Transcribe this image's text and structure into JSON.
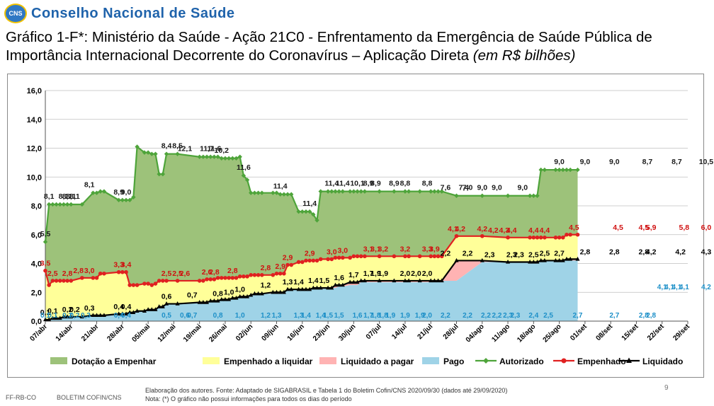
{
  "header": {
    "logo_badge": "CNS",
    "org_name": "Conselho Nacional de Saúde",
    "title_main": "Gráfico 1-F*: Ministério da Saúde - Ação 21C0 - Enfrentamento da Emergência de Saúde Pública de Importância Internacional Decorrente do Coronavírus – Aplicação Direta ",
    "title_unit": "(em R$ bilhões)"
  },
  "footer": {
    "code": "FF-RB-CO",
    "bulletin": "BOLETIM COFIN/CNS",
    "source": "Elaboração dos autores. Fonte: Adaptado de SIGABRASIL e Tabela 1 do Boletim Cofin/CNS 2020/09/30 (dados até 29/09/2020)",
    "note": "Nota: (*) O gráfico não possui informações para todos os dias do período",
    "page": "9"
  },
  "colors": {
    "dotacao_fill": "#9dc27a",
    "empenhado_fill": "#ffff99",
    "liq_pagar_fill": "#ffb3b3",
    "pago_fill": "#9fd3e7",
    "autorizado_line": "#4ea43a",
    "empenhado_line": "#e02020",
    "liquidado_line": "#000000",
    "pago_label": "#1e90c8"
  },
  "chart_data": {
    "type": "area",
    "ylim": [
      0,
      16
    ],
    "yticks": [
      "0,0",
      "2,0",
      "4,0",
      "6,0",
      "8,0",
      "10,0",
      "12,0",
      "14,0",
      "16,0"
    ],
    "x_ticks": [
      "07/abr",
      "14/abr",
      "21/abr",
      "28/abr",
      "05/mai",
      "12/mai",
      "19/mai",
      "26/mai",
      "02/jun",
      "09/jun",
      "16/jun",
      "23/jun",
      "30/jun",
      "07/jul",
      "14/jul",
      "21/jul",
      "28/jul",
      "04/ago",
      "11/ago",
      "18/ago",
      "25/ago",
      "01/set",
      "08/set",
      "15/set",
      "22/set",
      "29/set"
    ],
    "x_days": [
      0,
      1,
      2,
      3,
      4,
      5,
      6,
      7,
      10,
      13,
      14,
      15,
      16,
      20,
      21,
      22,
      23,
      24,
      25,
      27,
      28,
      29,
      30,
      31,
      32,
      33,
      36,
      42,
      43,
      44,
      45,
      46,
      47,
      48,
      49,
      50,
      51,
      52,
      53,
      54,
      55,
      56,
      57,
      58,
      59,
      62,
      63,
      64,
      65,
      66,
      67,
      69,
      70,
      71,
      72,
      73,
      74,
      75,
      77,
      78,
      79,
      80,
      81,
      83,
      84,
      85,
      86,
      87,
      91,
      95,
      98,
      99,
      102,
      105,
      106,
      107,
      108,
      112,
      119,
      126,
      132,
      133,
      134,
      135,
      136,
      139,
      140,
      141,
      142,
      143,
      145
    ],
    "series": [
      {
        "name": "Autorizado",
        "values": [
          5.5,
          8.1,
          8.1,
          8.1,
          8.1,
          8.1,
          8.1,
          8.1,
          8.1,
          8.9,
          8.9,
          9.0,
          9.0,
          8.4,
          8.4,
          8.4,
          8.4,
          8.6,
          12.1,
          11.7,
          11.7,
          11.6,
          11.6,
          10.2,
          10.2,
          11.6,
          11.6,
          11.4,
          11.4,
          11.4,
          11.4,
          11.4,
          11.4,
          11.3,
          11.3,
          11.3,
          11.3,
          11.3,
          11.4,
          10.1,
          9.8,
          8.9,
          8.9,
          8.9,
          8.9,
          8.9,
          8.9,
          8.8,
          8.8,
          8.8,
          8.8,
          7.6,
          7.6,
          7.6,
          7.6,
          7.4,
          7.0,
          9.0,
          9.0,
          9.0,
          9.0,
          9.0,
          9.0,
          9.0,
          9.0,
          9.0,
          9.0,
          9.0,
          9.0,
          9.0,
          9.0,
          9.0,
          9.0,
          9.0,
          9.0,
          9.0,
          9.0,
          8.7,
          8.7,
          8.7,
          8.7,
          8.7,
          8.7,
          10.5,
          10.5,
          10.5,
          10.5,
          10.5,
          10.5,
          10.5,
          10.5
        ]
      },
      {
        "name": "Empenhado",
        "values": [
          3.5,
          2.5,
          2.8,
          2.8,
          2.8,
          2.8,
          2.8,
          2.8,
          3.0,
          3.0,
          3.0,
          3.3,
          3.3,
          3.4,
          3.4,
          3.4,
          2.5,
          2.5,
          2.5,
          2.6,
          2.6,
          2.5,
          2.6,
          2.8,
          2.8,
          2.8,
          2.8,
          2.8,
          2.8,
          2.9,
          2.9,
          2.9,
          3.0,
          3.0,
          3.0,
          3.0,
          3.0,
          3.0,
          3.1,
          3.1,
          3.1,
          3.2,
          3.2,
          3.2,
          3.2,
          3.2,
          3.3,
          3.3,
          3.3,
          3.9,
          3.9,
          4.1,
          4.1,
          4.2,
          4.2,
          4.2,
          4.2,
          4.3,
          4.3,
          4.3,
          4.4,
          4.4,
          4.4,
          4.4,
          4.5,
          4.5,
          4.5,
          4.5,
          4.5,
          4.5,
          4.5,
          4.5,
          4.5,
          4.5,
          4.5,
          4.5,
          4.5,
          5.9,
          5.9,
          5.8,
          5.8,
          5.8,
          5.8,
          5.8,
          5.8,
          5.8,
          5.8,
          5.8,
          6.0,
          6.0,
          6.0
        ]
      },
      {
        "name": "Liquidado",
        "values": [
          0.1,
          0.1,
          0.2,
          0.2,
          0.2,
          0.3,
          0.3,
          0.3,
          0.3,
          0.4,
          0.4,
          0.4,
          0.4,
          0.5,
          0.5,
          0.5,
          0.6,
          0.6,
          0.7,
          0.7,
          0.8,
          0.8,
          0.8,
          1.0,
          1.0,
          1.2,
          1.2,
          1.3,
          1.3,
          1.3,
          1.4,
          1.4,
          1.4,
          1.5,
          1.5,
          1.5,
          1.6,
          1.6,
          1.7,
          1.7,
          1.7,
          1.8,
          1.9,
          1.9,
          1.9,
          2.0,
          2.0,
          2.0,
          2.0,
          2.2,
          2.2,
          2.2,
          2.2,
          2.2,
          2.2,
          2.3,
          2.3,
          2.3,
          2.3,
          2.3,
          2.5,
          2.5,
          2.5,
          2.7,
          2.7,
          2.7,
          2.8,
          2.8,
          2.8,
          2.8,
          2.8,
          2.8,
          2.8,
          2.8,
          2.8,
          2.8,
          2.8,
          4.2,
          4.2,
          4.1,
          4.1,
          4.1,
          4.1,
          4.2,
          4.2,
          4.2,
          4.2,
          4.2,
          4.3,
          4.3,
          4.3
        ]
      },
      {
        "name": "Pago",
        "values": [
          0.1,
          0.1,
          0.2,
          0.2,
          0.2,
          0.3,
          0.3,
          0.3,
          0.3,
          0.4,
          0.4,
          0.4,
          0.4,
          0.5,
          0.5,
          0.5,
          0.6,
          0.6,
          0.7,
          0.7,
          0.8,
          0.8,
          0.8,
          1.0,
          1.0,
          1.2,
          1.2,
          1.3,
          1.3,
          1.3,
          1.4,
          1.4,
          1.4,
          1.5,
          1.5,
          1.5,
          1.6,
          1.6,
          1.7,
          1.7,
          1.7,
          1.8,
          1.9,
          1.9,
          1.9,
          1.9,
          2.0,
          2.0,
          2.0,
          2.2,
          2.2,
          2.2,
          2.2,
          2.2,
          2.2,
          2.2,
          2.2,
          2.2,
          2.3,
          2.3,
          2.3,
          2.4,
          2.4,
          2.5,
          2.5,
          2.5,
          2.7,
          2.7,
          2.7,
          2.7,
          2.7,
          2.7,
          2.7,
          2.7,
          2.7,
          2.7,
          2.8,
          2.8,
          4.1,
          4.1,
          4.1,
          4.1,
          4.1,
          4.1,
          4.2,
          4.2,
          4.2,
          4.2,
          4.2,
          4.2,
          4.2
        ]
      }
    ],
    "legend": [
      "Dotação a Empenhar",
      "Empenhado a liquidar",
      "Liquidado a pagar",
      "Pago",
      "Autorizado",
      "Empenhado",
      "Liquidado"
    ],
    "legend_position": "bottom",
    "data_labels": {
      "autorizado": [
        [
          0,
          "5,5"
        ],
        [
          1,
          "8,1"
        ],
        [
          5,
          "8,1"
        ],
        [
          6,
          "8,1"
        ],
        [
          7,
          "8,1"
        ],
        [
          8,
          "8,1"
        ],
        [
          12,
          "8,1"
        ],
        [
          20,
          "8,9"
        ],
        [
          22,
          "9,0"
        ],
        [
          33,
          "8,4"
        ],
        [
          36,
          "8,5"
        ],
        [
          38,
          "12,1"
        ],
        [
          44,
          "11,7"
        ],
        [
          46,
          "11,6"
        ],
        [
          48,
          "10,2"
        ],
        [
          54,
          "11,6"
        ],
        [
          64,
          "11,4"
        ],
        [
          72,
          "11,4"
        ],
        [
          78,
          "11,4"
        ],
        [
          81,
          "11,4"
        ],
        [
          85,
          "10,1"
        ],
        [
          88,
          "8,9"
        ],
        [
          90,
          "8,9"
        ],
        [
          95,
          "8,9"
        ],
        [
          98,
          "8,8"
        ],
        [
          104,
          "8,8"
        ],
        [
          109,
          "7,6"
        ],
        [
          114,
          "7,4"
        ],
        [
          115,
          "7,0"
        ],
        [
          119,
          "9,0"
        ],
        [
          123,
          "9,0"
        ],
        [
          130,
          "9,0"
        ],
        [
          140,
          "9,0"
        ],
        [
          147,
          "9,0"
        ],
        [
          155,
          "9,0"
        ],
        [
          164,
          "8,7"
        ],
        [
          172,
          "8,7"
        ],
        [
          180,
          "10,5"
        ]
      ],
      "empenhado": [
        [
          0,
          "3,5"
        ],
        [
          2,
          "2,5"
        ],
        [
          6,
          "2,8"
        ],
        [
          9,
          "2,8"
        ],
        [
          12,
          "3,0"
        ],
        [
          20,
          "3,3"
        ],
        [
          22,
          "3,4"
        ],
        [
          33,
          "2,5"
        ],
        [
          36,
          "2,5"
        ],
        [
          38,
          "2,6"
        ],
        [
          44,
          "2,6"
        ],
        [
          46,
          "2,8"
        ],
        [
          51,
          "2,8"
        ],
        [
          60,
          "2,8"
        ],
        [
          64,
          "2,9"
        ],
        [
          66,
          "2,9"
        ],
        [
          72,
          "2,9"
        ],
        [
          78,
          "3,0"
        ],
        [
          81,
          "3,0"
        ],
        [
          88,
          "3,1"
        ],
        [
          90,
          "3,1"
        ],
        [
          92,
          "3,2"
        ],
        [
          98,
          "3,2"
        ],
        [
          104,
          "3,3"
        ],
        [
          106,
          "3,9"
        ],
        [
          111,
          "4,1"
        ],
        [
          113,
          "4,2"
        ],
        [
          119,
          "4,2"
        ],
        [
          122,
          "4,2"
        ],
        [
          125,
          "4,3"
        ],
        [
          127,
          "4,4"
        ],
        [
          133,
          "4,4"
        ],
        [
          136,
          "4,4"
        ],
        [
          144,
          "4,5"
        ],
        [
          156,
          "4,5"
        ],
        [
          163,
          "4,5"
        ],
        [
          165,
          "5,9"
        ],
        [
          174,
          "5,8"
        ],
        [
          180,
          "6,0"
        ]
      ],
      "liquidado": [
        [
          0,
          "0,1"
        ],
        [
          2,
          "0,1"
        ],
        [
          6,
          "0,2"
        ],
        [
          8,
          "0,2"
        ],
        [
          12,
          "0,3"
        ],
        [
          20,
          "0,4"
        ],
        [
          22,
          "0,4"
        ],
        [
          33,
          "0,6"
        ],
        [
          40,
          "0,7"
        ],
        [
          47,
          "0,8"
        ],
        [
          50,
          "1,0"
        ],
        [
          53,
          "1,0"
        ],
        [
          60,
          "1,2"
        ],
        [
          66,
          "1,3"
        ],
        [
          69,
          "1,4"
        ],
        [
          73,
          "1,4"
        ],
        [
          76,
          "1,5"
        ],
        [
          80,
          "1,6"
        ],
        [
          84,
          "1,7"
        ],
        [
          88,
          "1,7"
        ],
        [
          90,
          "1,9"
        ],
        [
          92,
          "1,9"
        ],
        [
          98,
          "2,0"
        ],
        [
          101,
          "2,0"
        ],
        [
          104,
          "2,0"
        ],
        [
          109,
          "2,2"
        ],
        [
          115,
          "2,2"
        ],
        [
          121,
          "2,3"
        ],
        [
          127,
          "2,3"
        ],
        [
          129,
          "2,3"
        ],
        [
          133,
          "2,5"
        ],
        [
          136,
          "2,5"
        ],
        [
          140,
          "2,7"
        ],
        [
          147,
          "2,8"
        ],
        [
          155,
          "2,8"
        ],
        [
          163,
          "2,8"
        ],
        [
          165,
          "4,2"
        ],
        [
          173,
          "4,2"
        ],
        [
          180,
          "4,3"
        ]
      ],
      "pago": [
        [
          0,
          "0,1"
        ],
        [
          2,
          "0,1"
        ],
        [
          6,
          "0,2"
        ],
        [
          8,
          "0,2"
        ],
        [
          11,
          "0,3"
        ],
        [
          20,
          "0,4"
        ],
        [
          22,
          "0,4"
        ],
        [
          33,
          "0,5"
        ],
        [
          38,
          "0,6"
        ],
        [
          40,
          "0,7"
        ],
        [
          47,
          "0,8"
        ],
        [
          53,
          "1,0"
        ],
        [
          60,
          "1,2"
        ],
        [
          63,
          "1,3"
        ],
        [
          69,
          "1,3"
        ],
        [
          71,
          "1,4"
        ],
        [
          75,
          "1,4"
        ],
        [
          77,
          "1,5"
        ],
        [
          80,
          "1,5"
        ],
        [
          85,
          "1,6"
        ],
        [
          88,
          "1,7"
        ],
        [
          90,
          "1,8"
        ],
        [
          92,
          "1,8"
        ],
        [
          94,
          "1,9"
        ],
        [
          98,
          "1,9"
        ],
        [
          102,
          "1,9"
        ],
        [
          104,
          "2,0"
        ],
        [
          109,
          "2,2"
        ],
        [
          115,
          "2,2"
        ],
        [
          120,
          "2,2"
        ],
        [
          123,
          "2,2"
        ],
        [
          126,
          "2,3"
        ],
        [
          128,
          "2,3"
        ],
        [
          133,
          "2,4"
        ],
        [
          137,
          "2,5"
        ],
        [
          145,
          "2,7"
        ],
        [
          155,
          "2,7"
        ],
        [
          163,
          "2,8"
        ],
        [
          165,
          "2,8"
        ],
        [
          168,
          "4,1"
        ],
        [
          170,
          "4,1"
        ],
        [
          172,
          "4,1"
        ],
        [
          174,
          "4,1"
        ],
        [
          180,
          "4,2"
        ]
      ]
    }
  }
}
